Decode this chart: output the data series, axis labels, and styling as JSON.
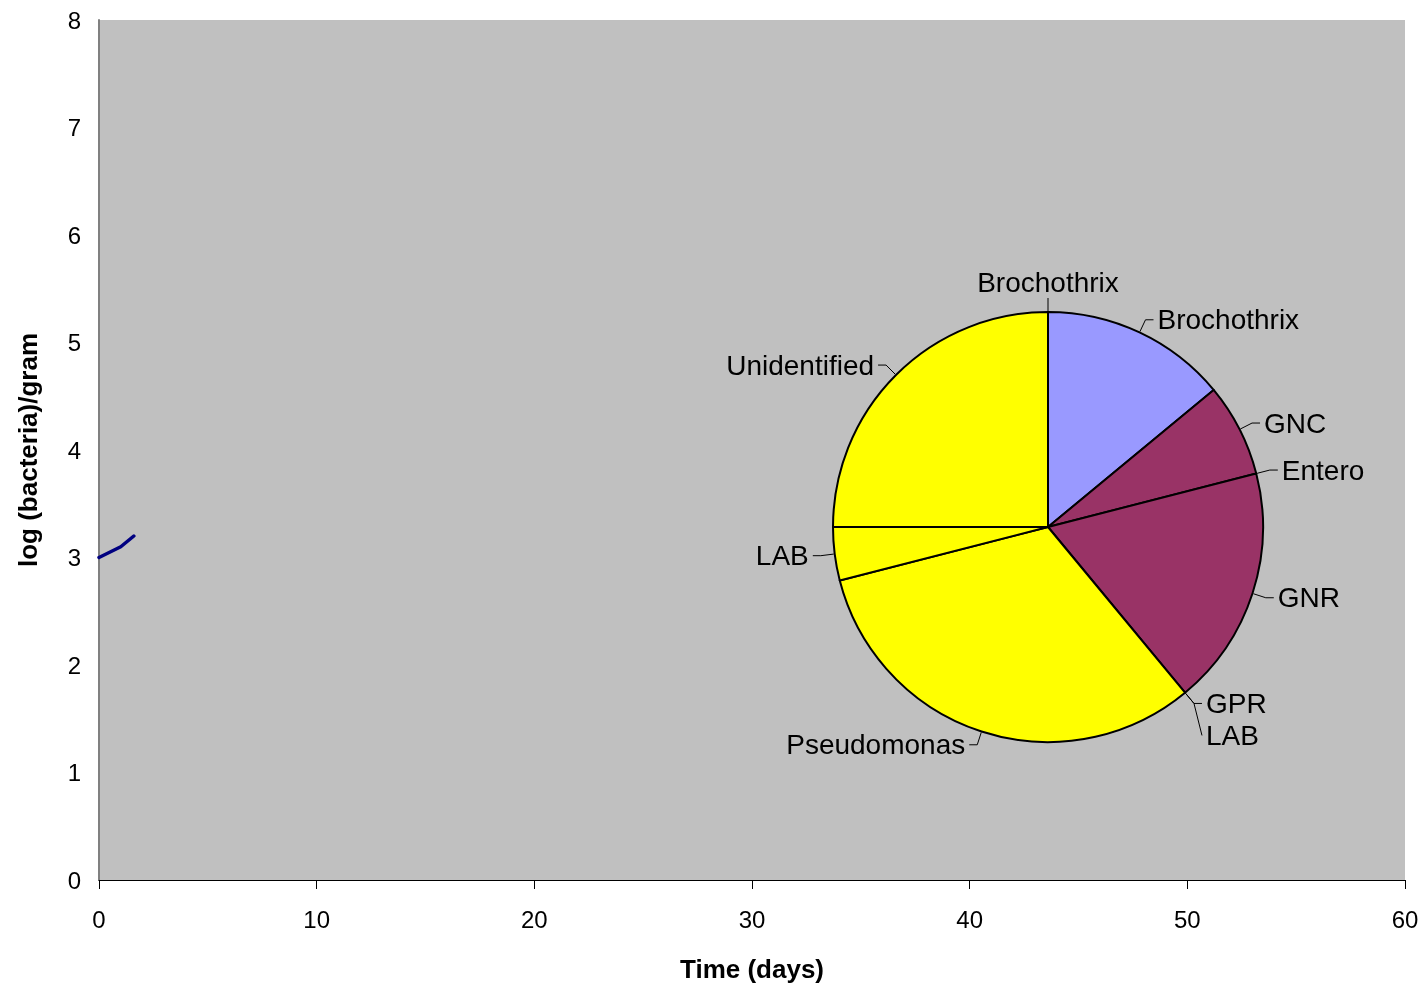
{
  "chart_data": [
    {
      "type": "line",
      "xlabel": "Time (days)",
      "ylabel": "log (bacteria)/gram",
      "x": [
        0,
        1,
        1.6
      ],
      "series": [
        {
          "color": "#000080",
          "values": [
            3.0,
            3.1,
            3.2
          ]
        }
      ],
      "xlim": [
        0,
        60
      ],
      "xticks": [
        0,
        10,
        20,
        30,
        40,
        50,
        60
      ],
      "ylim": [
        0,
        8
      ],
      "yticks": [
        0,
        1,
        2,
        3,
        4,
        5,
        6,
        7,
        8
      ],
      "marker": "none",
      "line_style": "solid"
    },
    {
      "type": "pie",
      "categories": [
        "Brochothrix",
        "Brochothrix",
        "GNC",
        "Entero",
        "GNR",
        "GPR",
        "LAB",
        "Pseudomonas",
        "LAB",
        "Unidentified"
      ],
      "values": [
        0,
        14,
        7,
        0,
        18,
        0,
        0,
        32,
        4,
        25
      ],
      "colors": [
        "#9999ff",
        "#9999ff",
        "#993366",
        "#993366",
        "#993366",
        "#993366",
        "#ffff00",
        "#ffff00",
        "#ffff00",
        "#ffff00"
      ]
    }
  ]
}
